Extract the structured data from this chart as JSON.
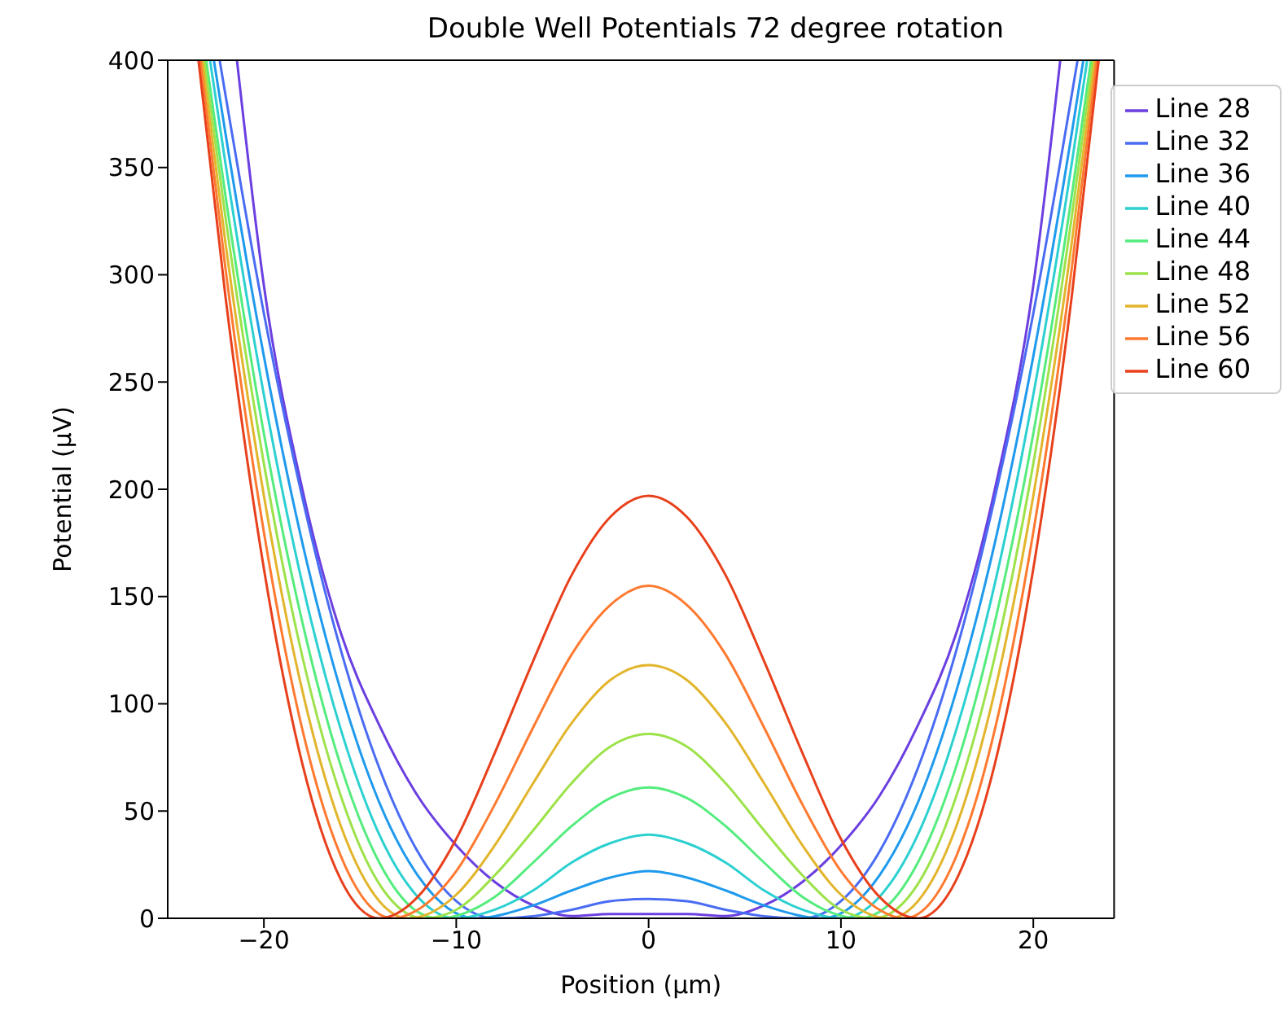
{
  "chart_data": {
    "type": "line",
    "title": "Double Well Potentials 72 degree rotation",
    "xlabel": "Position (μm)",
    "ylabel": "Potential (μV)",
    "xlim": [
      -25,
      24.2
    ],
    "xticks": [
      -20,
      -10,
      0,
      10,
      20
    ],
    "ylim": [
      0,
      400
    ],
    "yticks": [
      0,
      50,
      100,
      150,
      200,
      250,
      300,
      350,
      400
    ],
    "grid": false,
    "legend": "top right",
    "marker": "none",
    "line_style": "solid",
    "series": [
      {
        "name": "Line 28",
        "color": "#6b3fe0",
        "x": [
          -21.4,
          -20,
          -18,
          -16,
          -14,
          -12,
          -10,
          -8,
          -6,
          -4,
          -2,
          0,
          2,
          4,
          6,
          8,
          10,
          12,
          14,
          16,
          18,
          20,
          21.4
        ],
        "values": [
          400,
          295,
          200,
          133,
          90,
          57,
          34,
          17,
          6,
          1,
          2,
          2,
          2,
          1,
          6,
          17,
          34,
          57,
          90,
          133,
          200,
          295,
          400
        ]
      },
      {
        "name": "Line 32",
        "color": "#4a6cf3",
        "x": [
          -22.3,
          -22,
          -20,
          -18,
          -16,
          -14,
          -12,
          -10,
          -8,
          -6,
          -4,
          -2,
          0,
          2,
          4,
          6,
          8,
          10,
          12,
          14,
          16,
          18,
          20,
          22,
          22.3
        ],
        "values": [
          400,
          384,
          282,
          196,
          125,
          70,
          31,
          8,
          0,
          1,
          4,
          8,
          9,
          8,
          4,
          1,
          0,
          8,
          31,
          70,
          125,
          196,
          282,
          384,
          400
        ]
      },
      {
        "name": "Line 36",
        "color": "#1f9aed",
        "x": [
          -22.6,
          -22,
          -20,
          -18,
          -16,
          -14,
          -12,
          -9,
          -8,
          -6,
          -4,
          -2,
          0,
          2,
          4,
          6,
          8,
          9,
          12,
          14,
          16,
          18,
          20,
          22,
          22.6
        ],
        "values": [
          400,
          366,
          262,
          175,
          106,
          54,
          20,
          0,
          1,
          6,
          13,
          19,
          22,
          19,
          13,
          6,
          1,
          0,
          20,
          54,
          106,
          175,
          262,
          366,
          400
        ]
      },
      {
        "name": "Line 40",
        "color": "#2cd0d0",
        "x": [
          -22.8,
          -22,
          -20,
          -18,
          -16,
          -14,
          -12,
          -10,
          -8,
          -6,
          -4,
          -2,
          0,
          2,
          4,
          6,
          8,
          10,
          12,
          14,
          16,
          18,
          20,
          22,
          22.8
        ],
        "values": [
          400,
          352,
          244,
          156,
          88,
          39,
          10,
          0,
          4,
          13,
          26,
          35,
          39,
          35,
          26,
          13,
          4,
          0,
          10,
          39,
          88,
          156,
          244,
          352,
          400
        ]
      },
      {
        "name": "Line 44",
        "color": "#55ec7e",
        "x": [
          -23,
          -22,
          -20,
          -18,
          -16,
          -14,
          -12,
          -10.9,
          -8,
          -6,
          -4,
          -2,
          0,
          2,
          4,
          6,
          8,
          10.9,
          12,
          14,
          16,
          18,
          20,
          22,
          23
        ],
        "values": [
          400,
          337,
          226,
          138,
          71,
          26,
          3,
          0,
          10,
          26,
          43,
          56,
          61,
          56,
          43,
          26,
          10,
          0,
          3,
          26,
          71,
          138,
          226,
          337,
          400
        ]
      },
      {
        "name": "Line 48",
        "color": "#9de24a",
        "x": [
          -23.1,
          -22,
          -20,
          -18,
          -16,
          -14,
          -11.7,
          -10,
          -8,
          -6,
          -4,
          -2,
          0,
          2,
          4,
          6,
          8,
          10,
          11.7,
          14,
          16,
          18,
          20,
          22,
          23.1
        ],
        "values": [
          400,
          327,
          212,
          122,
          57,
          16,
          0,
          4,
          20,
          41,
          63,
          80,
          86,
          80,
          63,
          41,
          20,
          4,
          0,
          16,
          57,
          122,
          212,
          327,
          400
        ]
      },
      {
        "name": "Line 52",
        "color": "#e2b52c",
        "x": [
          -23.2,
          -22,
          -20,
          -18,
          -16,
          -14,
          -12.5,
          -10,
          -8,
          -6,
          -4,
          -2,
          0,
          2,
          4,
          6,
          8,
          10,
          12.5,
          14,
          16,
          18,
          20,
          22,
          23.2
        ],
        "values": [
          400,
          315,
          197,
          106,
          43,
          8,
          0,
          11,
          34,
          63,
          91,
          111,
          118,
          111,
          91,
          63,
          34,
          11,
          0,
          8,
          43,
          106,
          197,
          315,
          400
        ]
      },
      {
        "name": "Line 56",
        "color": "#ff7a30",
        "x": [
          -23.3,
          -22,
          -20,
          -18,
          -16,
          -13.3,
          -12,
          -10,
          -8,
          -6,
          -4,
          -2,
          0,
          2,
          4,
          6,
          8,
          10,
          12,
          13.3,
          16,
          18,
          20,
          22,
          23.3
        ],
        "values": [
          400,
          303,
          180,
          88,
          29,
          0,
          4,
          22,
          53,
          89,
          123,
          146,
          155,
          146,
          123,
          89,
          53,
          22,
          4,
          0,
          29,
          88,
          180,
          303,
          400
        ]
      },
      {
        "name": "Line 60",
        "color": "#e8401c",
        "x": [
          -23.4,
          -22,
          -20,
          -18,
          -16,
          -14,
          -12,
          -10,
          -8,
          -6,
          -4,
          -2,
          0,
          2,
          4,
          6,
          8,
          10,
          12,
          14,
          16,
          18,
          20,
          22,
          23.4
        ],
        "values": [
          400,
          290,
          163,
          72,
          18,
          0,
          10,
          37,
          77,
          120,
          160,
          187,
          197,
          187,
          160,
          120,
          77,
          37,
          10,
          0,
          18,
          72,
          163,
          290,
          400
        ]
      }
    ]
  }
}
